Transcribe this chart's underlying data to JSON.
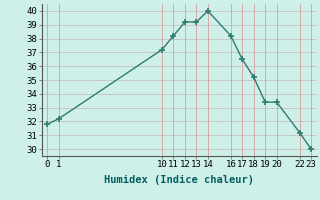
{
  "x": [
    0,
    1,
    10,
    11,
    12,
    13,
    14,
    16,
    17,
    18,
    19,
    20,
    22,
    23
  ],
  "y": [
    31.8,
    32.2,
    37.2,
    38.2,
    39.2,
    39.2,
    40.0,
    38.2,
    36.5,
    35.2,
    33.4,
    33.4,
    31.2,
    30.0
  ],
  "xticks": [
    0,
    1,
    10,
    11,
    12,
    13,
    14,
    16,
    17,
    18,
    19,
    20,
    22,
    23
  ],
  "yticks": [
    30,
    31,
    32,
    33,
    34,
    35,
    36,
    37,
    38,
    39,
    40
  ],
  "xlabel": "Humidex (Indice chaleur)",
  "line_color": "#2d7d6e",
  "bg_color": "#cef0e8",
  "grid_h_color": "#c8c0cc",
  "grid_v_color": "#d4a0a0",
  "ylim": [
    29.5,
    40.5
  ],
  "xlim": [
    -0.5,
    23.5
  ],
  "tick_fontsize": 6.5,
  "xlabel_fontsize": 7.5
}
